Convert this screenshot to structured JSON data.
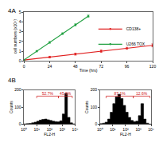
{
  "chart_data": [
    {
      "type": "line",
      "title": "4A",
      "x_label": "Time (hrs)",
      "y_label": "cell numbers (x10⁵)",
      "xlim": [
        0,
        120
      ],
      "ylim": [
        0,
        5
      ],
      "xticks": [
        0,
        24,
        48,
        72,
        96,
        120
      ],
      "yticks": [
        0,
        1,
        2,
        3,
        4,
        5
      ],
      "legend": "right",
      "series": [
        {
          "name": "CD138+",
          "color": "#e02020",
          "marker": "circle",
          "x": [
            0,
            24,
            48,
            72,
            96,
            120
          ],
          "values": [
            0.1,
            0.4,
            0.7,
            1.0,
            1.3,
            1.6
          ],
          "errors": [
            0.05,
            0.08,
            0.1,
            0.12,
            0.1,
            0.15
          ]
        },
        {
          "name": "U266 TOX",
          "color": "#20a040",
          "marker": "circle",
          "x": [
            0,
            12,
            24,
            36,
            48,
            60
          ],
          "values": [
            0.1,
            1.0,
            1.9,
            2.8,
            3.7,
            4.6
          ],
          "errors": [
            0.05,
            0.06,
            0.08,
            0.08,
            0.1,
            0.1
          ]
        }
      ]
    },
    {
      "type": "histogram",
      "title": "4B",
      "x_label": "FL2-H",
      "y_label": "Counts",
      "log": "x",
      "xlim": [
        1,
        10000
      ],
      "xticks": [
        {
          "value": 1,
          "label": "10⁰"
        },
        {
          "value": 10,
          "label": "10¹"
        },
        {
          "value": 100,
          "label": "10²"
        },
        {
          "value": 1000,
          "label": "10³"
        },
        {
          "value": 10000,
          "label": "10⁴"
        }
      ],
      "ylim": [
        0,
        200
      ],
      "yticks": [
        0,
        100,
        200
      ],
      "color": "#000000",
      "bins": [
        1,
        1.585,
        2.512,
        3.981,
        6.31,
        10,
        15.85,
        25.12,
        39.81,
        63.1,
        100,
        158.5,
        251.2,
        398.1,
        631,
        1000,
        1585,
        2512,
        3981,
        6310,
        10000
      ],
      "values": [
        2,
        3,
        5,
        8,
        12,
        18,
        24,
        28,
        30,
        26,
        22,
        18,
        15,
        14,
        20,
        60,
        180,
        40,
        8,
        2
      ],
      "gates": [
        {
          "x0": 10,
          "x1": 500,
          "label": "52.7%"
        },
        {
          "x0": 500,
          "x1": 6000,
          "label": "45.6%"
        }
      ]
    },
    {
      "type": "histogram",
      "x_label": "FL2-H",
      "y_label": "Counts",
      "log": "x",
      "xlim": [
        1,
        10000
      ],
      "xticks": [
        {
          "value": 1,
          "label": "10⁰"
        },
        {
          "value": 10,
          "label": "10¹"
        },
        {
          "value": 100,
          "label": "10²"
        },
        {
          "value": 1000,
          "label": "10³"
        },
        {
          "value": 10000,
          "label": "10⁴"
        }
      ],
      "ylim": [
        0,
        200
      ],
      "yticks": [
        0,
        100,
        200
      ],
      "color": "#000000",
      "bins": [
        1,
        1.585,
        2.512,
        3.981,
        6.31,
        10,
        15.85,
        25.12,
        39.81,
        63.1,
        100,
        158.5,
        251.2,
        398.1,
        631,
        1000,
        1585,
        2512,
        3981,
        6310,
        10000
      ],
      "values": [
        3,
        6,
        12,
        30,
        70,
        120,
        160,
        175,
        150,
        110,
        70,
        40,
        22,
        15,
        18,
        50,
        120,
        30,
        6,
        1
      ],
      "gates": [
        {
          "x0": 3,
          "x1": 400,
          "label": "87.1%"
        },
        {
          "x0": 400,
          "x1": 8000,
          "label": "12.6%"
        }
      ]
    }
  ]
}
